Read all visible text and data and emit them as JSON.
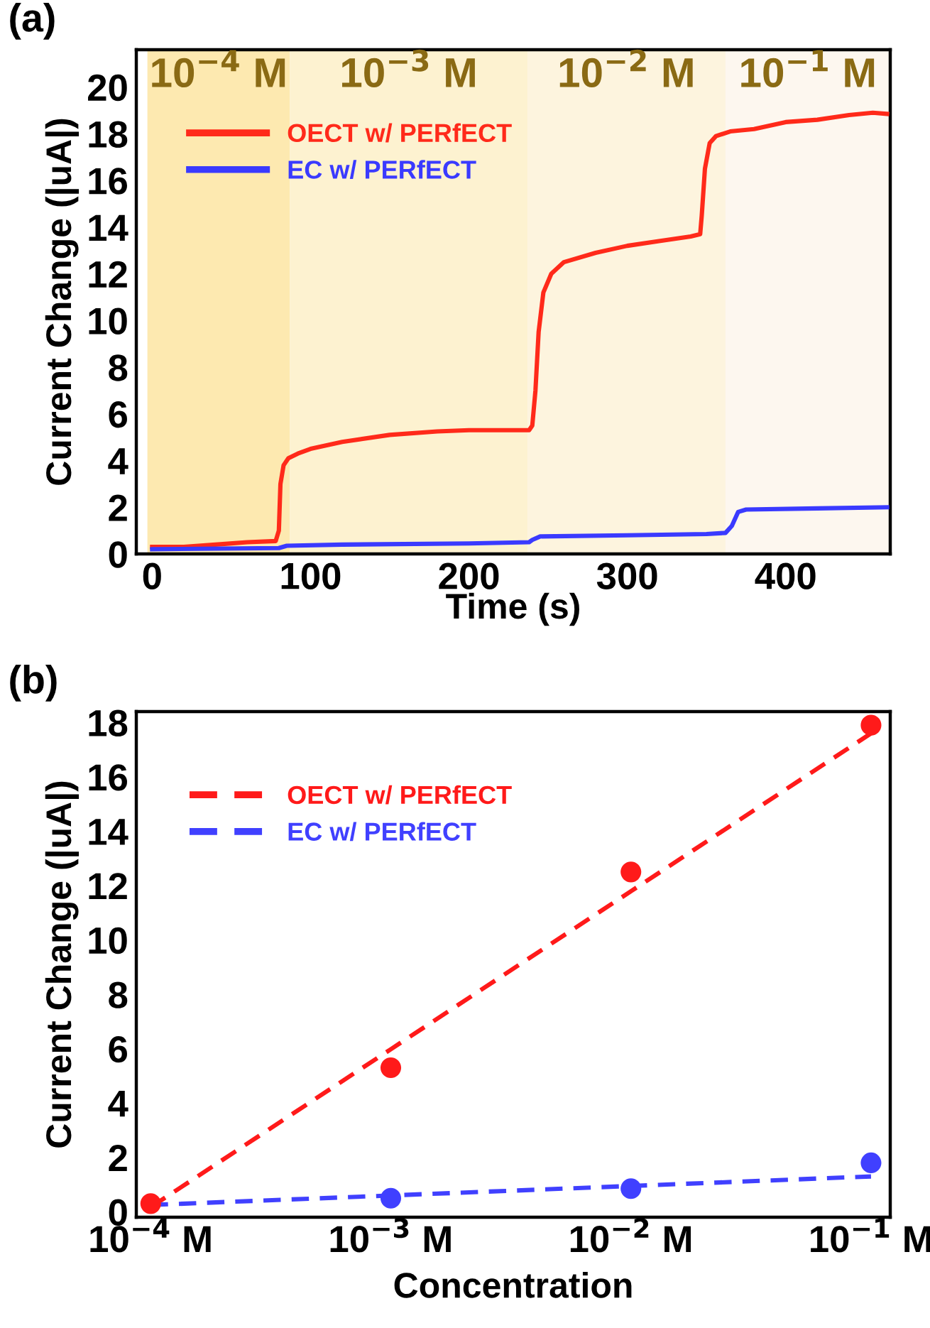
{
  "chart_data": [
    {
      "type": "line",
      "xlabel": "Time (s)",
      "ylabel": "Current Change (|uA|)",
      "annotations": [
        "(a)"
      ],
      "xlim": [
        -10,
        466
      ],
      "xticks": [
        0,
        100,
        200,
        300,
        400
      ],
      "ylim": [
        0,
        21.6
      ],
      "yticks": [
        0,
        2,
        4,
        6,
        8,
        10,
        12,
        14,
        16,
        18,
        20
      ],
      "grid": false,
      "legend": "top left",
      "line_style": "solid",
      "marker": "none",
      "bands": [
        {
          "axis": "x",
          "from": -3,
          "to": 87,
          "label": "10$^{−4}$ M",
          "color": "#fde9b0"
        },
        {
          "axis": "x",
          "from": 87,
          "to": 237,
          "label": "10$^{−3}$ M",
          "color": "#fdf2d0"
        },
        {
          "axis": "x",
          "from": 237,
          "to": 362,
          "label": "10$^{−2}$ M",
          "color": "#fdf4de"
        },
        {
          "axis": "x",
          "from": 362,
          "to": 466,
          "label": "10$^{−1}$ M",
          "color": "#fdf7ef"
        }
      ],
      "series": [
        {
          "name": "OECT w/ PERfECT",
          "color": "#ff2a1a",
          "x": [
            0,
            20,
            40,
            60,
            78,
            80,
            81,
            83,
            86,
            92,
            100,
            120,
            150,
            180,
            200,
            220,
            238,
            240,
            242,
            244,
            247,
            252,
            260,
            280,
            300,
            320,
            340,
            346,
            347,
            349,
            352,
            356,
            365,
            380,
            400,
            420,
            440,
            455,
            464
          ],
          "values": [
            0.3,
            0.3,
            0.4,
            0.5,
            0.55,
            1,
            3,
            3.8,
            4.1,
            4.3,
            4.5,
            4.8,
            5.1,
            5.25,
            5.3,
            5.3,
            5.3,
            5.5,
            7,
            9.5,
            11.2,
            12,
            12.5,
            12.9,
            13.2,
            13.4,
            13.6,
            13.7,
            14.5,
            16.5,
            17.6,
            17.9,
            18.1,
            18.2,
            18.5,
            18.6,
            18.8,
            18.9,
            18.85
          ]
        },
        {
          "name": "EC w/ PERfECT",
          "color": "#3a3aff",
          "x": [
            0,
            80,
            85,
            120,
            200,
            238,
            240,
            245,
            300,
            350,
            362,
            366,
            370,
            375,
            420,
            464
          ],
          "values": [
            0.2,
            0.25,
            0.35,
            0.4,
            0.45,
            0.5,
            0.6,
            0.75,
            0.8,
            0.85,
            0.9,
            1.2,
            1.8,
            1.9,
            1.95,
            2.0
          ]
        }
      ]
    },
    {
      "type": "scatter",
      "xlabel": "Concentration",
      "ylabel": "Current Change (|uA|)",
      "annotations": [
        "(b)"
      ],
      "categories": [
        "10$^{−4}$ M",
        "10$^{−3}$ M",
        "10$^{−2}$ M",
        "10$^{−1}$ M"
      ],
      "ylim": [
        -0.2,
        18.4
      ],
      "yticks": [
        0,
        2,
        4,
        6,
        8,
        10,
        12,
        14,
        16,
        18
      ],
      "grid": false,
      "legend": "top left",
      "marker": "circle",
      "series": [
        {
          "color": "#ff1a1a",
          "values": [
            0.3,
            5.3,
            12.5,
            17.9
          ]
        },
        {
          "color": "#4040ff",
          "values": [
            null,
            0.5,
            0.85,
            1.8
          ]
        },
        {
          "type": "line",
          "line_style": "dashed",
          "marker": "none",
          "name": "OECT w/ PERfECT",
          "color": "#ff1a1a",
          "values": [
            0.17,
            5.98,
            11.79,
            17.6
          ]
        },
        {
          "type": "line",
          "line_style": "dashed",
          "marker": "none",
          "name": "EC w/ PERfECT",
          "color": "#4040ff",
          "values": [
            0.25,
            0.6,
            0.95,
            1.3
          ]
        }
      ]
    }
  ]
}
